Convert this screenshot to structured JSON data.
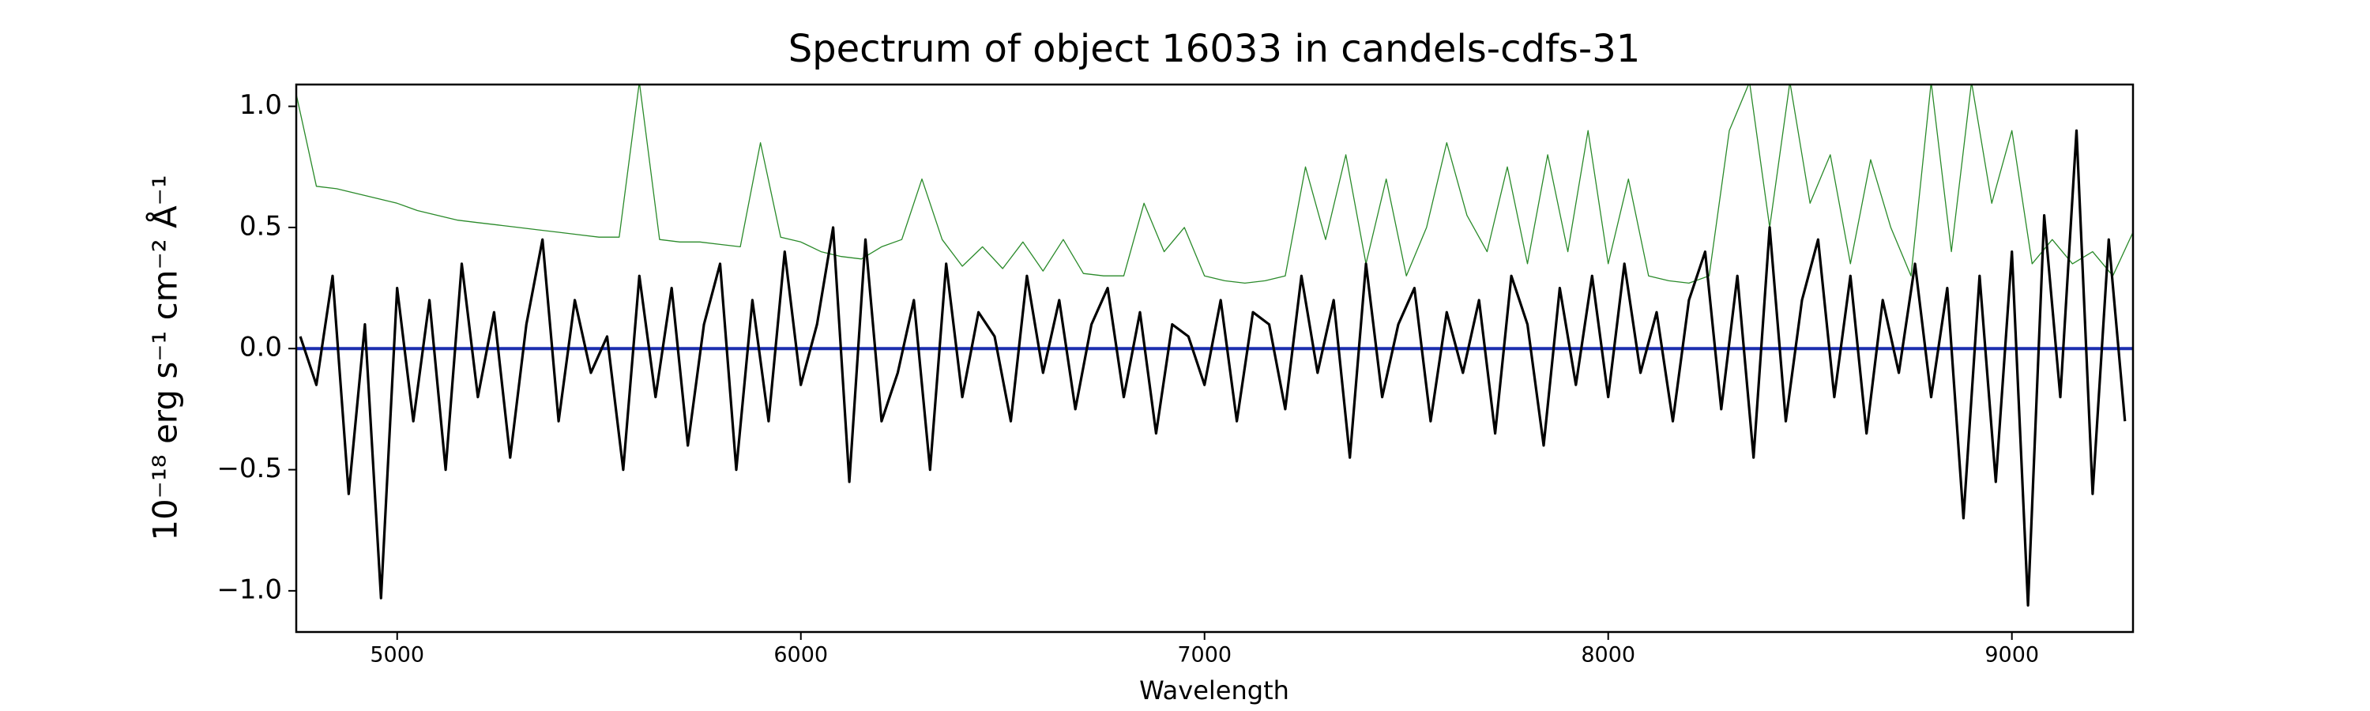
{
  "chart_data": {
    "type": "line",
    "title": "Spectrum of object 16033 in candels-cdfs-31",
    "xlabel": "Wavelength",
    "ylabel": "10⁻¹⁸ erg s⁻¹ cm⁻² Å⁻¹",
    "xlim": [
      4750,
      9300
    ],
    "ylim": [
      -1.17,
      1.09
    ],
    "xticks": [
      5000,
      6000,
      7000,
      8000,
      9000
    ],
    "yticks": [
      {
        "value": -1.0,
        "label": "−1.0"
      },
      {
        "value": -0.5,
        "label": "−0.5"
      },
      {
        "value": 0.0,
        "label": "0.0"
      },
      {
        "value": 0.5,
        "label": "0.5"
      },
      {
        "value": 1.0,
        "label": "1.0"
      }
    ],
    "series": [
      {
        "color": "#2a8a2a",
        "x": [
          4750,
          4800,
          4850,
          4900,
          4950,
          5000,
          5050,
          5100,
          5150,
          5200,
          5250,
          5300,
          5350,
          5400,
          5450,
          5500,
          5550,
          5600,
          5650,
          5700,
          5750,
          5800,
          5850,
          5900,
          5950,
          6000,
          6050,
          6100,
          6150,
          6200,
          6250,
          6300,
          6350,
          6400,
          6450,
          6500,
          6550,
          6600,
          6650,
          6700,
          6750,
          6800,
          6850,
          6900,
          6950,
          7000,
          7050,
          7100,
          7150,
          7200,
          7250,
          7300,
          7350,
          7400,
          7450,
          7500,
          7550,
          7600,
          7650,
          7700,
          7750,
          7800,
          7850,
          7900,
          7950,
          8000,
          8050,
          8100,
          8150,
          8200,
          8250,
          8300,
          8350,
          8400,
          8450,
          8500,
          8550,
          8600,
          8650,
          8700,
          8750,
          8800,
          8850,
          8900,
          8950,
          9000,
          9050,
          9100,
          9150,
          9200,
          9250,
          9300
        ],
        "values": [
          1.05,
          0.67,
          0.66,
          0.64,
          0.62,
          0.6,
          0.57,
          0.55,
          0.53,
          0.52,
          0.51,
          0.5,
          0.49,
          0.48,
          0.47,
          0.46,
          0.46,
          1.1,
          0.45,
          0.44,
          0.44,
          0.43,
          0.42,
          0.85,
          0.46,
          0.44,
          0.4,
          0.38,
          0.37,
          0.42,
          0.45,
          0.7,
          0.45,
          0.34,
          0.42,
          0.33,
          0.44,
          0.32,
          0.45,
          0.31,
          0.3,
          0.3,
          0.6,
          0.4,
          0.5,
          0.3,
          0.28,
          0.27,
          0.28,
          0.3,
          0.75,
          0.45,
          0.8,
          0.35,
          0.7,
          0.3,
          0.5,
          0.85,
          0.55,
          0.4,
          0.75,
          0.35,
          0.8,
          0.4,
          0.9,
          0.35,
          0.7,
          0.3,
          0.28,
          0.27,
          0.3,
          0.9,
          1.1,
          0.5,
          1.1,
          0.6,
          0.8,
          0.35,
          0.78,
          0.5,
          0.3,
          1.1,
          0.4,
          1.1,
          0.6,
          0.9,
          0.35,
          0.45,
          0.35,
          0.4,
          0.3,
          0.48
        ]
      },
      {
        "color": "#1c2fb0",
        "x": [
          4750,
          9300
        ],
        "values": [
          0.0,
          0.0
        ]
      },
      {
        "color": "#000000",
        "x": [
          4760,
          4800,
          4840,
          4880,
          4920,
          4960,
          5000,
          5040,
          5080,
          5120,
          5160,
          5200,
          5240,
          5280,
          5320,
          5360,
          5400,
          5440,
          5480,
          5520,
          5560,
          5600,
          5640,
          5680,
          5720,
          5760,
          5800,
          5840,
          5880,
          5920,
          5960,
          6000,
          6040,
          6080,
          6120,
          6160,
          6200,
          6240,
          6280,
          6320,
          6360,
          6400,
          6440,
          6480,
          6520,
          6560,
          6600,
          6640,
          6680,
          6720,
          6760,
          6800,
          6840,
          6880,
          6920,
          6960,
          7000,
          7040,
          7080,
          7120,
          7160,
          7200,
          7240,
          7280,
          7320,
          7360,
          7400,
          7440,
          7480,
          7520,
          7560,
          7600,
          7640,
          7680,
          7720,
          7760,
          7800,
          7840,
          7880,
          7920,
          7960,
          8000,
          8040,
          8080,
          8120,
          8160,
          8200,
          8240,
          8280,
          8320,
          8360,
          8400,
          8440,
          8480,
          8520,
          8560,
          8600,
          8640,
          8680,
          8720,
          8760,
          8800,
          8840,
          8880,
          8920,
          8960,
          9000,
          9040,
          9080,
          9120,
          9160,
          9200,
          9240,
          9280
        ],
        "values": [
          0.05,
          -0.15,
          0.3,
          -0.6,
          0.1,
          -1.03,
          0.25,
          -0.3,
          0.2,
          -0.5,
          0.35,
          -0.2,
          0.15,
          -0.45,
          0.1,
          0.45,
          -0.3,
          0.2,
          -0.1,
          0.05,
          -0.5,
          0.3,
          -0.2,
          0.25,
          -0.4,
          0.1,
          0.35,
          -0.5,
          0.2,
          -0.3,
          0.4,
          -0.15,
          0.1,
          0.5,
          -0.55,
          0.45,
          -0.3,
          -0.1,
          0.2,
          -0.5,
          0.35,
          -0.2,
          0.15,
          0.05,
          -0.3,
          0.3,
          -0.1,
          0.2,
          -0.25,
          0.1,
          0.25,
          -0.2,
          0.15,
          -0.35,
          0.1,
          0.05,
          -0.15,
          0.2,
          -0.3,
          0.15,
          0.1,
          -0.25,
          0.3,
          -0.1,
          0.2,
          -0.45,
          0.35,
          -0.2,
          0.1,
          0.25,
          -0.3,
          0.15,
          -0.1,
          0.2,
          -0.35,
          0.3,
          0.1,
          -0.4,
          0.25,
          -0.15,
          0.3,
          -0.2,
          0.35,
          -0.1,
          0.15,
          -0.3,
          0.2,
          0.4,
          -0.25,
          0.3,
          -0.45,
          0.5,
          -0.3,
          0.2,
          0.45,
          -0.2,
          0.3,
          -0.35,
          0.2,
          -0.1,
          0.35,
          -0.2,
          0.25,
          -0.7,
          0.3,
          -0.55,
          0.4,
          -1.06,
          0.55,
          -0.2,
          0.9,
          -0.6,
          0.45,
          -0.3
        ]
      }
    ]
  }
}
